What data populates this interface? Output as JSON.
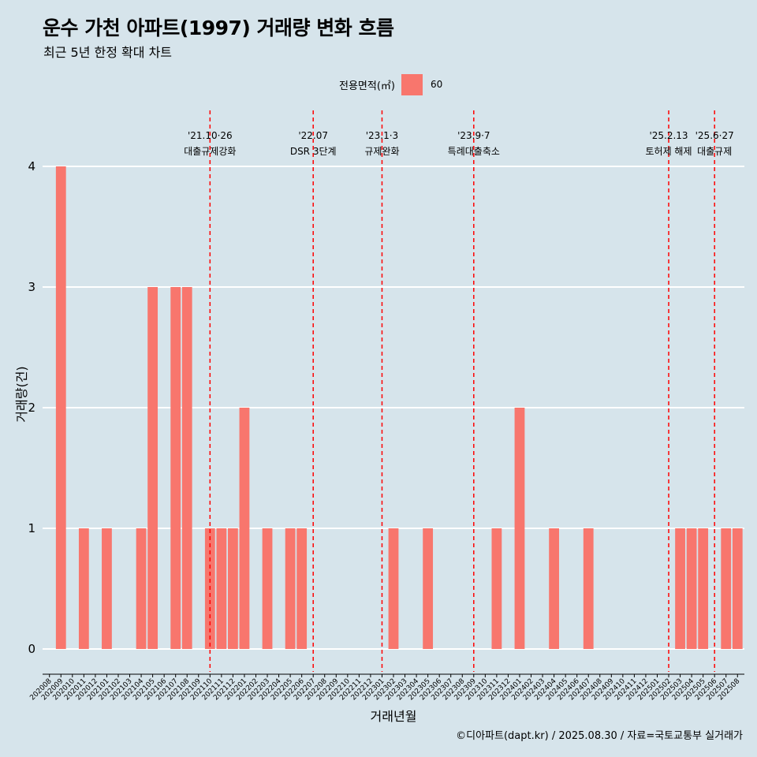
{
  "header": {
    "title": "운수 가천 아파트(1997) 거래량 변화 흐름",
    "subtitle": "최근 5년 한정 확대 차트"
  },
  "legend": {
    "title": "전용면적(㎡)",
    "value": "60",
    "color": "#f8766d"
  },
  "caption": "©디아파트(dapt.kr) / 2025.08.30 / 자료=국토교통부 실거래가",
  "chart_data": {
    "type": "bar",
    "xlabel": "거래년월",
    "ylabel": "거래량(건)",
    "ylim": [
      0,
      4
    ],
    "yticks": [
      0,
      1,
      2,
      3,
      4
    ],
    "grid": true,
    "legend_position": "top",
    "bar_color": "#f8766d",
    "categories": [
      "202008",
      "202009",
      "202010",
      "202011",
      "202012",
      "202101",
      "202102",
      "202103",
      "202104",
      "202105",
      "202106",
      "202107",
      "202108",
      "202109",
      "202110",
      "202111",
      "202112",
      "202201",
      "202202",
      "202203",
      "202204",
      "202205",
      "202206",
      "202207",
      "202208",
      "202209",
      "202210",
      "202211",
      "202212",
      "202301",
      "202302",
      "202303",
      "202304",
      "202305",
      "202306",
      "202307",
      "202308",
      "202309",
      "202310",
      "202311",
      "202312",
      "202401",
      "202402",
      "202403",
      "202404",
      "202405",
      "202406",
      "202407",
      "202408",
      "202409",
      "202410",
      "202411",
      "202412",
      "202501",
      "202502",
      "202503",
      "202504",
      "202505",
      "202506",
      "202507",
      "202508"
    ],
    "series": [
      {
        "name": "60",
        "values": [
          0,
          4,
          0,
          1,
          0,
          1,
          0,
          0,
          1,
          3,
          0,
          3,
          3,
          0,
          1,
          1,
          1,
          2,
          0,
          1,
          0,
          1,
          1,
          0,
          0,
          0,
          0,
          0,
          0,
          0,
          1,
          0,
          0,
          1,
          0,
          0,
          0,
          0,
          0,
          1,
          0,
          2,
          0,
          0,
          1,
          0,
          0,
          1,
          0,
          0,
          0,
          0,
          0,
          0,
          0,
          1,
          1,
          1,
          0,
          1,
          1
        ]
      }
    ],
    "annotations": [
      {
        "category": "202110",
        "date": "'21.10·26",
        "text": "대출규제강화"
      },
      {
        "category": "202207",
        "date": "'22.07",
        "text": "DSR 3단계"
      },
      {
        "category": "202301",
        "date": "'23.1·3",
        "text": "규제완화"
      },
      {
        "category": "202309",
        "date": "'23.9·7",
        "text": "특례대출축소"
      },
      {
        "category": "202502",
        "date": "'25.2.13",
        "text": "토허제 해제"
      },
      {
        "category": "202506",
        "date": "'25.6·27",
        "text": "대출규제"
      }
    ],
    "annotation_color": "#ff0000"
  }
}
